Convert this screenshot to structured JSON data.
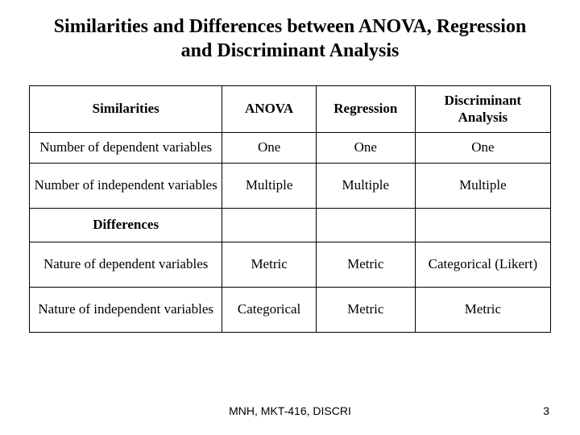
{
  "title": "Similarities and Differences between ANOVA, Regression and Discriminant Analysis",
  "headers": {
    "col0": "Similarities",
    "col1": "ANOVA",
    "col2": "Regression",
    "col3": "Discriminant Analysis"
  },
  "rows": {
    "r1": {
      "label": "Number of dependent variables",
      "anova": "One",
      "regression": "One",
      "discriminant": "One"
    },
    "r2": {
      "label": "Number of independent variables",
      "anova": "Multiple",
      "regression": "Multiple",
      "discriminant": "Multiple"
    },
    "sec": {
      "label": "Differences"
    },
    "r3": {
      "label": "Nature of dependent variables",
      "anova": "Metric",
      "regression": "Metric",
      "discriminant": "Categorical (Likert)"
    },
    "r4": {
      "label": "Nature of independent variables",
      "anova": "Categorical",
      "regression": "Metric",
      "discriminant": "Metric"
    }
  },
  "footer": {
    "center": "MNH, MKT-416, DISCRI",
    "page": "3"
  },
  "style": {
    "background": "#ffffff",
    "border_color": "#000000",
    "title_fontsize": 24,
    "cell_fontsize": 17,
    "footer_fontsize": 14
  }
}
